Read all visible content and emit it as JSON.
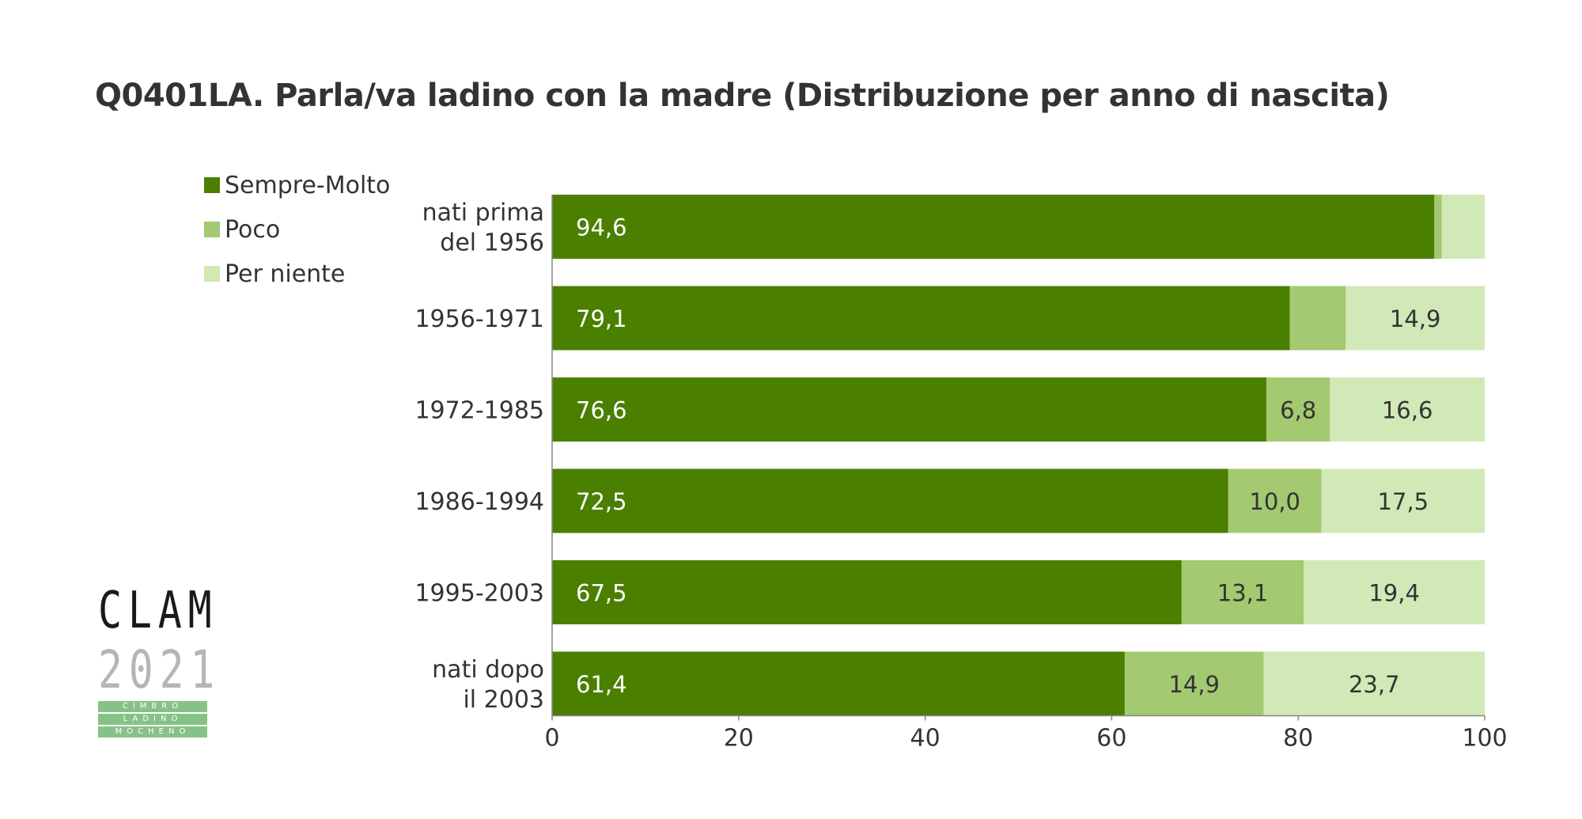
{
  "title": "Q0401LA. Parla/va ladino con la madre (Distribuzione per anno di nascita)",
  "colors": {
    "series": [
      "#4a7f00",
      "#a3c971",
      "#d1e9b6"
    ],
    "axis": "#888888",
    "text": "#333333",
    "label_dark_bg": "#ffffff"
  },
  "logo": {
    "line1": "CLAM",
    "line2": "2021",
    "bands": [
      "CIMBRO",
      "LADINO",
      "MOCHENO"
    ]
  },
  "chart_data": {
    "type": "bar",
    "orientation": "horizontal",
    "stacked": true,
    "title": "Q0401LA. Parla/va ladino con la madre (Distribuzione per anno di nascita)",
    "categories": [
      [
        "nati prima",
        "del 1956"
      ],
      [
        "1956-1971"
      ],
      [
        "1972-1985"
      ],
      [
        "1986-1994"
      ],
      [
        "1995-2003"
      ],
      [
        "nati dopo",
        "il 2003"
      ]
    ],
    "series": [
      {
        "name": "Sempre-Molto",
        "values": [
          94.6,
          79.1,
          76.6,
          72.5,
          67.5,
          61.4
        ],
        "labels": [
          "94,6",
          "79,1",
          "76,6",
          "72,5",
          "67,5",
          "61,4"
        ]
      },
      {
        "name": "Poco",
        "values": [
          0.8,
          6.0,
          6.8,
          10.0,
          13.1,
          14.9
        ],
        "labels": [
          "",
          "",
          "6,8",
          "10,0",
          "13,1",
          "14,9"
        ]
      },
      {
        "name": "Per niente",
        "values": [
          4.6,
          14.9,
          16.6,
          17.5,
          19.4,
          23.7
        ],
        "labels": [
          "",
          "14,9",
          "16,6",
          "17,5",
          "19,4",
          "23,7"
        ]
      }
    ],
    "xlim": [
      0,
      100
    ],
    "xticks": [
      "0",
      "20",
      "40",
      "60",
      "80",
      "100"
    ],
    "legend": "top-left",
    "grid": false
  }
}
